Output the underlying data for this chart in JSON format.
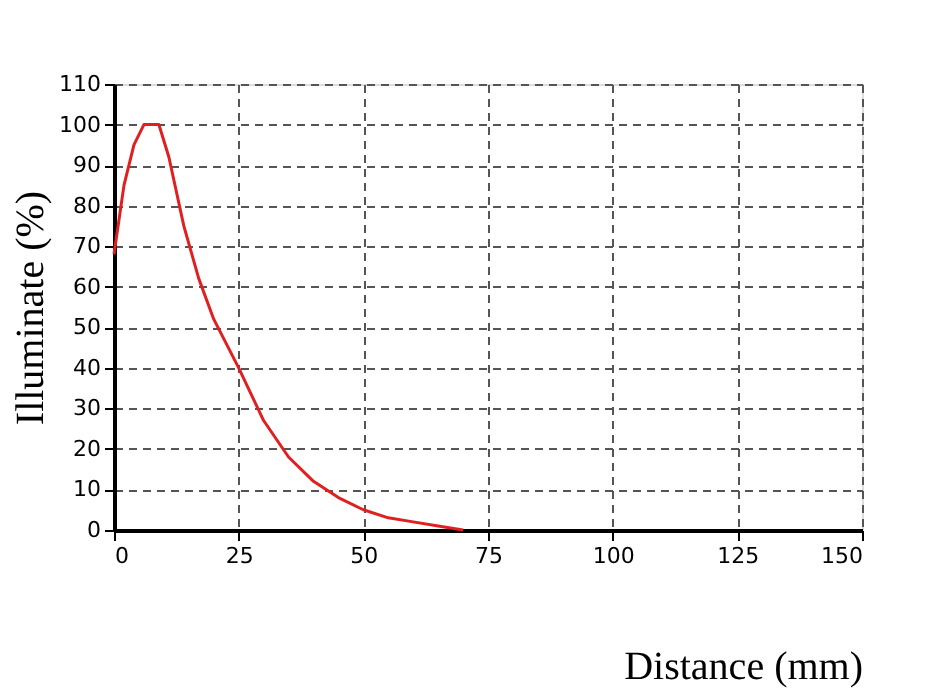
{
  "chart_data": {
    "type": "line",
    "xlabel": "Distance (mm)",
    "ylabel": "Illuminate (%)",
    "x": [
      0,
      2,
      4,
      6,
      9,
      11,
      14,
      17,
      20,
      25,
      30,
      35,
      40,
      45,
      50,
      55,
      60,
      65,
      70
    ],
    "series": [
      {
        "color": "#e02020",
        "values": [
          68,
          85,
          95,
          100,
          100,
          92,
          75,
          62,
          52,
          40,
          27,
          18,
          12,
          8,
          5,
          3,
          2,
          1,
          0
        ]
      }
    ],
    "xlim": [
      0,
      150
    ],
    "ylim": [
      0,
      110
    ],
    "xticks": [
      0,
      25,
      50,
      75,
      100,
      125,
      150
    ],
    "yticks": [
      0,
      10,
      20,
      30,
      40,
      50,
      60,
      70,
      80,
      90,
      100,
      110
    ],
    "grid": true,
    "marker": "none",
    "line_style": "solid"
  }
}
